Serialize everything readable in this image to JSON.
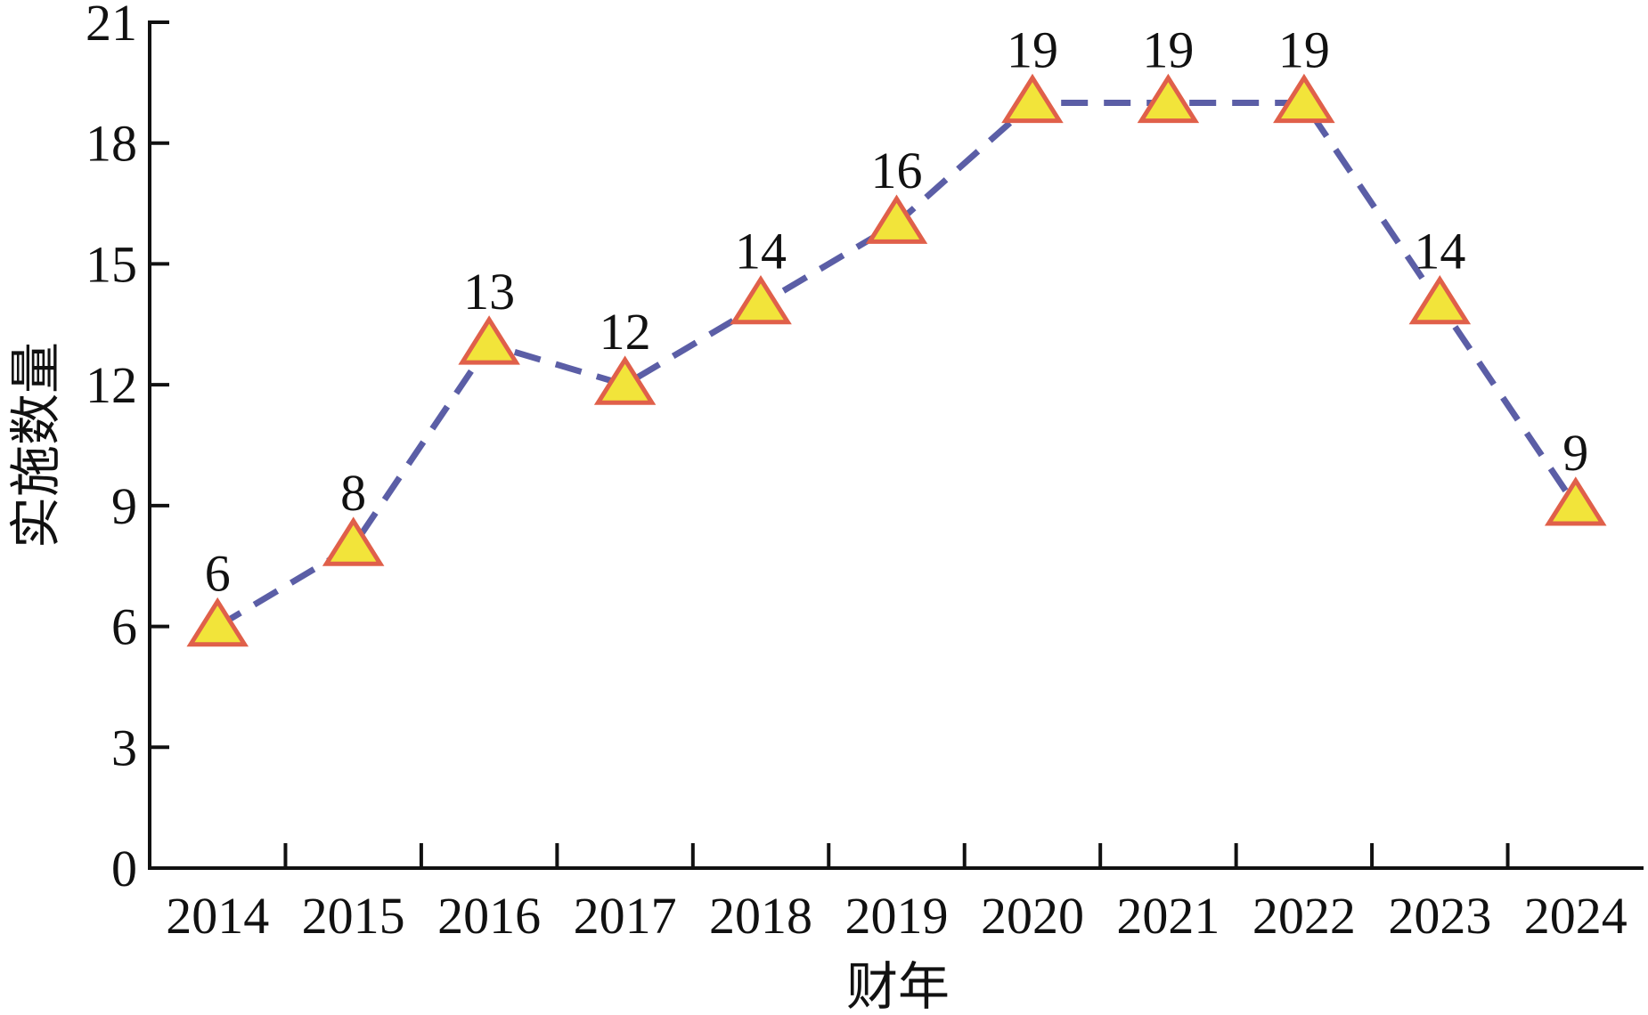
{
  "chart_data": {
    "type": "line",
    "categories": [
      "2014",
      "2015",
      "2016",
      "2017",
      "2018",
      "2019",
      "2020",
      "2021",
      "2022",
      "2023",
      "2024"
    ],
    "series": [
      {
        "values": [
          6,
          8,
          13,
          12,
          14,
          16,
          19,
          19,
          19,
          14,
          9
        ]
      }
    ],
    "xlabel": "财年",
    "ylabel": "实施数量",
    "ylim": [
      0,
      21
    ],
    "yticks": [
      "0",
      "3",
      "6",
      "9",
      "12",
      "15",
      "18",
      "21"
    ],
    "data_labels": [
      "6",
      "8",
      "13",
      "12",
      "14",
      "16",
      "19",
      "19",
      "19",
      "14",
      "9"
    ],
    "grid": false,
    "line_style": "dashed",
    "marker": "triangle",
    "colors": {
      "line": "#5b5ea6",
      "marker_fill": "#f2e43a",
      "marker_edge": "#e0604a",
      "axis": "#111111"
    }
  }
}
